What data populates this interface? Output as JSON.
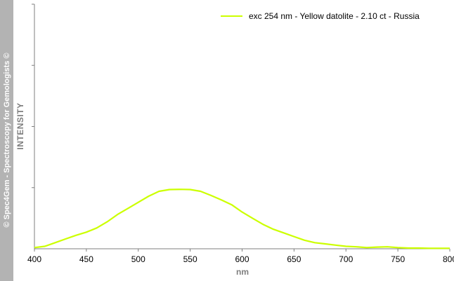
{
  "watermark": "© Spec4Gem - Spectroscopy for Gemologists ©",
  "chart_data": {
    "type": "line",
    "xlabel": "nm",
    "ylabel": "INTENSITY",
    "xlim": [
      400,
      800
    ],
    "ylim": [
      0,
      100
    ],
    "x_ticks": [
      400,
      450,
      500,
      550,
      600,
      650,
      700,
      750,
      800
    ],
    "y_ticks_labeled": false,
    "grid": false,
    "legend_position": "top-right",
    "series": [
      {
        "name": "exc 254 nm - Yellow datolite - 2.10 ct - Russia",
        "color": "#ccff00",
        "x": [
          400,
          410,
          420,
          430,
          440,
          450,
          460,
          470,
          480,
          490,
          500,
          510,
          520,
          530,
          540,
          550,
          560,
          570,
          580,
          590,
          600,
          610,
          620,
          630,
          640,
          650,
          660,
          670,
          680,
          690,
          700,
          710,
          720,
          730,
          740,
          750,
          760,
          770,
          780,
          790,
          800
        ],
        "y": [
          0.5,
          1.0,
          2.5,
          4.0,
          5.5,
          6.8,
          8.5,
          11.0,
          14.0,
          16.5,
          19.0,
          21.5,
          23.5,
          24.2,
          24.3,
          24.2,
          23.5,
          21.8,
          20.0,
          18.0,
          15.0,
          12.5,
          10.0,
          8.0,
          6.5,
          5.0,
          3.5,
          2.5,
          2.0,
          1.5,
          1.0,
          0.8,
          0.5,
          0.7,
          0.8,
          0.5,
          0.3,
          0.3,
          0.2,
          0.2,
          0.2
        ]
      }
    ]
  }
}
